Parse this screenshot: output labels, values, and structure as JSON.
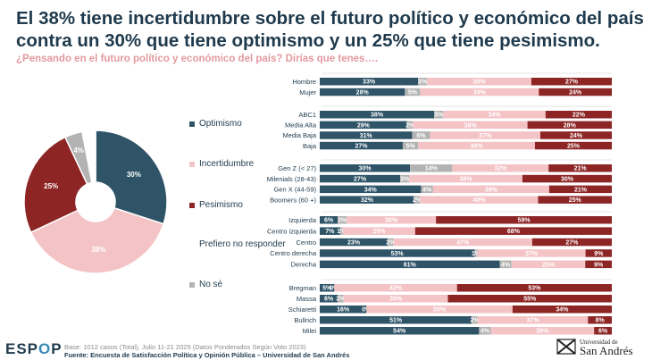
{
  "title_lines": [
    "El 38% tiene incertidumbre sobre el futuro político y económico del país",
    "contra un 30% que tiene optimismo y un 25% que tiene pesimismo."
  ],
  "subtitle": "¿Pensando en el futuro político y económico del país? Dirías que tenes….",
  "colors": {
    "optimismo": "#2f5468",
    "incertidumbre": "#f4c3c6",
    "pesimismo": "#8d2525",
    "prefiero": "#ffffff",
    "nose": "#b3b3b3"
  },
  "legend": [
    {
      "key": "optimismo",
      "label": "Optimismo"
    },
    {
      "key": "incertidumbre",
      "label": "Incertidumbre"
    },
    {
      "key": "pesimismo",
      "label": "Pesimismo"
    },
    {
      "key": "prefiero",
      "label": "Prefiero no responder"
    },
    {
      "key": "nose",
      "label": "No sé"
    }
  ],
  "chart_data": [
    {
      "type": "pie",
      "style": "donut",
      "slices": [
        {
          "key": "optimismo",
          "label": "Optimismo",
          "value": 30,
          "display": "30%"
        },
        {
          "key": "incertidumbre",
          "label": "Incertidumbre",
          "value": 38,
          "display": "38%"
        },
        {
          "key": "pesimismo",
          "label": "Pesimismo",
          "value": 25,
          "display": "25%"
        },
        {
          "key": "nose",
          "label": "No sé",
          "value": 4,
          "display": "4%"
        },
        {
          "key": "prefiero",
          "label": "Prefiero no responder",
          "value": 3,
          "display": ""
        }
      ]
    },
    {
      "type": "bar",
      "orientation": "horizontal",
      "stacked": true,
      "series_order": [
        "optimismo",
        "nose",
        "incertidumbre",
        "pesimismo"
      ],
      "groups": [
        {
          "rows": [
            {
              "label": "Hombre",
              "optimismo": 33,
              "nose": 3,
              "incertidumbre": 35,
              "pesimismo": 27
            },
            {
              "label": "Mujer",
              "optimismo": 28,
              "nose": 5,
              "incertidumbre": 39,
              "pesimismo": 24
            }
          ]
        },
        {
          "rows": [
            {
              "label": "ABC1",
              "optimismo": 38,
              "nose": 3,
              "incertidumbre": 34,
              "pesimismo": 22
            },
            {
              "label": "Media Alta",
              "optimismo": 29,
              "nose": 2,
              "incertidumbre": 38,
              "pesimismo": 28
            },
            {
              "label": "Media Baja",
              "optimismo": 31,
              "nose": 6,
              "incertidumbre": 37,
              "pesimismo": 24
            },
            {
              "label": "Baja",
              "optimismo": 27,
              "nose": 5,
              "incertidumbre": 38,
              "pesimismo": 25
            }
          ]
        },
        {
          "rows": [
            {
              "label": "Gen Z (< 27)",
              "optimismo": 30,
              "nose": 14,
              "incertidumbre": 32,
              "pesimismo": 21
            },
            {
              "label": "Milenials (28-43)",
              "optimismo": 27,
              "nose": 3,
              "incertidumbre": 38,
              "pesimismo": 30
            },
            {
              "label": "Gen X (44-59)",
              "optimismo": 34,
              "nose": 4,
              "incertidumbre": 39,
              "pesimismo": 21
            },
            {
              "label": "Boomers (60 +)",
              "optimismo": 32,
              "nose": 2,
              "incertidumbre": 40,
              "pesimismo": 25
            }
          ]
        },
        {
          "rows": [
            {
              "label": "Izquierda",
              "optimismo": 6,
              "nose": 3,
              "incertidumbre": 30,
              "pesimismo": 59
            },
            {
              "label": "Centro izquierda",
              "optimismo": 7,
              "nose": 1,
              "incertidumbre": 25,
              "pesimismo": 68
            },
            {
              "label": "Centro",
              "optimismo": 23,
              "nose": 2,
              "incertidumbre": 47,
              "pesimismo": 27
            },
            {
              "label": "Centro derecha",
              "optimismo": 53,
              "nose": 1,
              "incertidumbre": 37,
              "pesimismo": 9
            },
            {
              "label": "Derecha",
              "optimismo": 61,
              "nose": 4,
              "incertidumbre": 25,
              "pesimismo": 9
            }
          ]
        },
        {
          "rows": [
            {
              "label": "Bregman",
              "optimismo": 5,
              "nose": 0,
              "incertidumbre": 42,
              "pesimismo": 53
            },
            {
              "label": "Massa",
              "optimismo": 6,
              "nose": 2,
              "incertidumbre": 35,
              "pesimismo": 55
            },
            {
              "label": "Schiaretti",
              "optimismo": 16,
              "nose": 0,
              "incertidumbre": 50,
              "pesimismo": 34
            },
            {
              "label": "Bullrich",
              "optimismo": 51,
              "nose": 2,
              "incertidumbre": 37,
              "pesimismo": 8
            },
            {
              "label": "Milei",
              "optimismo": 54,
              "nose": 4,
              "incertidumbre": 35,
              "pesimismo": 6
            }
          ]
        }
      ]
    }
  ],
  "footer": {
    "base": "Base: 1012 casos (Total), Julio 11-21 2025 (Datos Ponderados Según Voto 2023)",
    "source": "Fuente: Encuesta de Satisfacción Política y Opinión Pública – Universidad de San Andrés"
  },
  "logos": {
    "espop_a": "ESP",
    "espop_b": "O",
    "espop_c": "P",
    "usa_line1": "Universidad de",
    "usa_line2": "San Andrés"
  }
}
